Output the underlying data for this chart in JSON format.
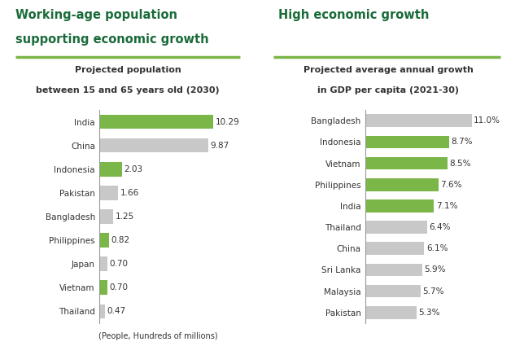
{
  "left_title_line1": "Working-age population",
  "left_title_line2": "supporting economic growth",
  "right_title": "High economic growth",
  "left_subtitle_line1": "Projected population",
  "left_subtitle_line2": "between 15 and 65 years old (2030)",
  "right_subtitle_line1": "Projected average annual growth",
  "right_subtitle_line2": "in GDP per capita (2021-30)",
  "left_xlabel": "(People, Hundreds of millions)",
  "left_countries": [
    "India",
    "China",
    "Indonesia",
    "Pakistan",
    "Bangladesh",
    "Philippines",
    "Japan",
    "Vietnam",
    "Thailand"
  ],
  "left_values": [
    10.29,
    9.87,
    2.03,
    1.66,
    1.25,
    0.82,
    0.7,
    0.7,
    0.47
  ],
  "left_labels": [
    "10.29",
    "9.87",
    "2.03",
    "1.66",
    "1.25",
    "0.82",
    "0.70",
    "0.70",
    "0.47"
  ],
  "left_colors": [
    "#7ab648",
    "#c8c8c8",
    "#7ab648",
    "#c8c8c8",
    "#c8c8c8",
    "#7ab648",
    "#c8c8c8",
    "#7ab648",
    "#c8c8c8"
  ],
  "right_countries": [
    "Bangladesh",
    "Indonesia",
    "Vietnam",
    "Philippines",
    "India",
    "Thailand",
    "China",
    "Sri Lanka",
    "Malaysia",
    "Pakistan"
  ],
  "right_values": [
    11.0,
    8.7,
    8.5,
    7.6,
    7.1,
    6.4,
    6.1,
    5.9,
    5.7,
    5.3
  ],
  "right_labels": [
    "11.0%",
    "8.7%",
    "8.5%",
    "7.6%",
    "7.1%",
    "6.4%",
    "6.1%",
    "5.9%",
    "5.7%",
    "5.3%"
  ],
  "right_colors": [
    "#c8c8c8",
    "#7ab648",
    "#7ab648",
    "#7ab648",
    "#7ab648",
    "#c8c8c8",
    "#c8c8c8",
    "#c8c8c8",
    "#c8c8c8",
    "#c8c8c8"
  ],
  "green_color": "#7ab648",
  "gray_color": "#c8c8c8",
  "title_color": "#1a6b3a",
  "text_color": "#333333",
  "divider_color": "#7ab648",
  "bg_color": "#ffffff",
  "axis_line_color": "#999999"
}
